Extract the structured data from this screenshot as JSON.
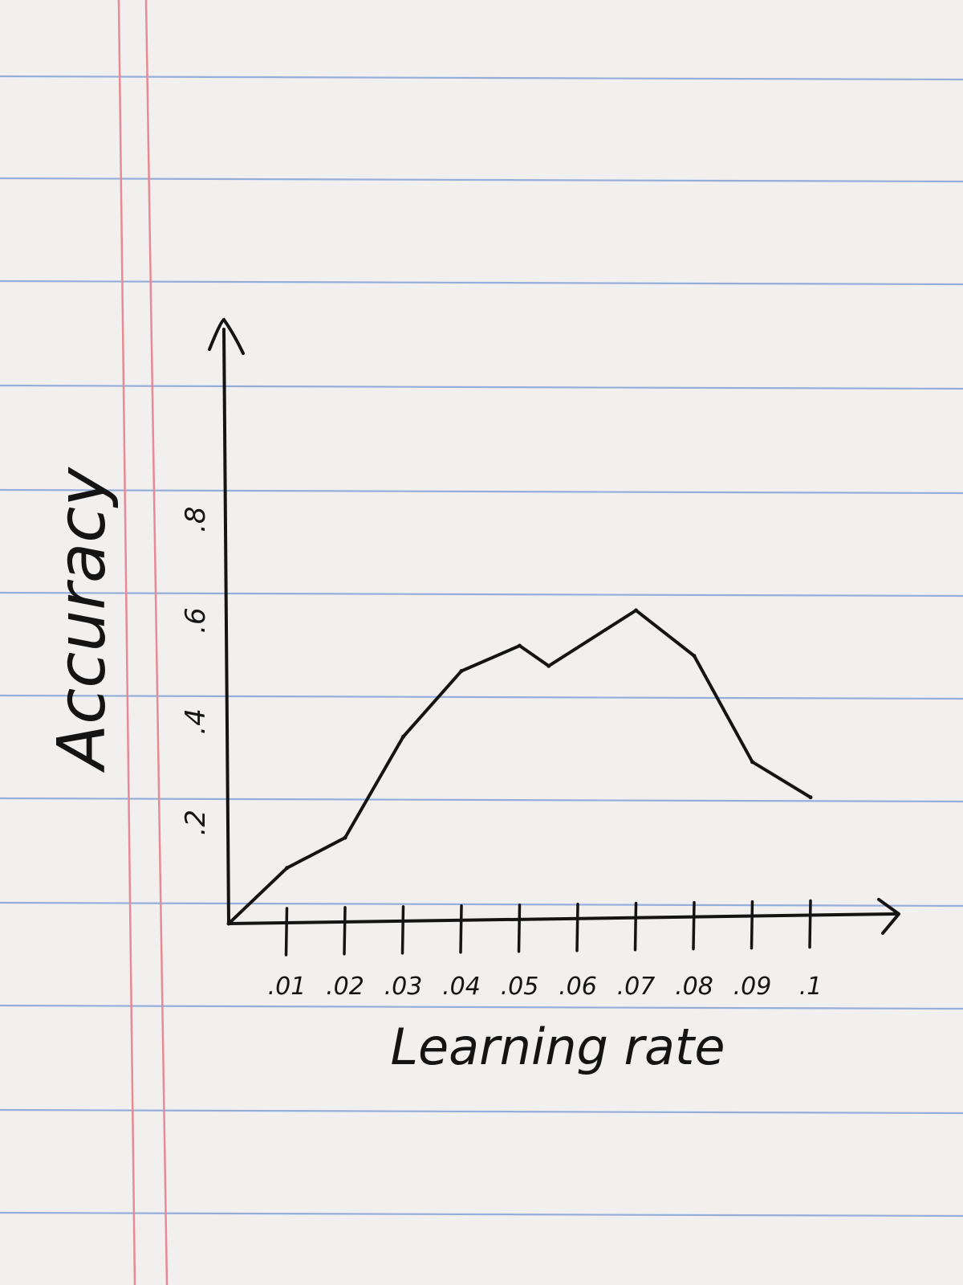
{
  "paper": {
    "rule_color": "#8aa6d8",
    "margin_color": "#e88a95",
    "paper_color": "#f1f0ee",
    "ink_color": "#141414"
  },
  "chart_data": {
    "type": "line",
    "title": "",
    "xlabel": "Learning rate",
    "ylabel": "Accuracy",
    "x_ticks": [
      0.01,
      0.02,
      0.03,
      0.04,
      0.05,
      0.06,
      0.07,
      0.08,
      0.09,
      0.1
    ],
    "x_tick_labels": [
      ".01",
      ".02",
      ".03",
      ".04",
      ".05",
      ".06",
      ".07",
      ".08",
      ".09",
      ".1"
    ],
    "y_ticks": [
      0.2,
      0.4,
      0.6,
      0.8
    ],
    "y_tick_labels": [
      ".2",
      ".4",
      ".6",
      ".8"
    ],
    "xlim": [
      0,
      0.1
    ],
    "ylim": [
      0,
      0.97
    ],
    "grid": false,
    "series": [
      {
        "x": [
          0.0,
          0.01,
          0.02,
          0.03,
          0.04,
          0.05,
          0.055,
          0.07,
          0.08,
          0.09,
          0.1
        ],
        "y": [
          0.0,
          0.11,
          0.17,
          0.37,
          0.5,
          0.55,
          0.51,
          0.62,
          0.53,
          0.32,
          0.25
        ]
      }
    ]
  }
}
